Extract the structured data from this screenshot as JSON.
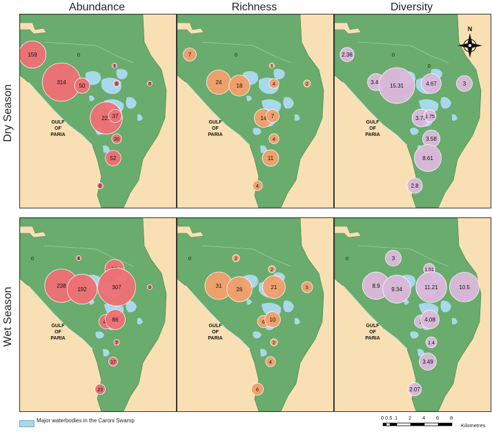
{
  "columns": [
    "Abundance",
    "Richness",
    "Diversity"
  ],
  "rows": [
    "Dry Season",
    "Wet Season"
  ],
  "gulf_label": [
    "GULF",
    "OF",
    "PARIA"
  ],
  "north_label": "N",
  "legend": {
    "waterbodies_label": "Major waterbodies in the Caroni Swamp",
    "waterbodies_color": "#a8d8ea"
  },
  "scale_bar": {
    "ticks": [
      "0",
      "0.5",
      "1",
      "2",
      "4",
      "6",
      "8"
    ],
    "unit": "Kilometres"
  },
  "colors": {
    "land": "#6aab6e",
    "sea": "#f9e0b4",
    "water": "#a8d8ea",
    "abundance": "#ef7075",
    "richness": "#f4a06c",
    "diversity": "#dcb9dc"
  },
  "chart_data": {
    "type": "proportional-symbol-map",
    "panels": [
      {
        "metric": "Abundance",
        "season": "Dry Season",
        "values": [
          "159",
          "0",
          "1",
          "314",
          "50",
          "8",
          "3",
          "221",
          "37",
          "20",
          "52",
          "8"
        ]
      },
      {
        "metric": "Richness",
        "season": "Dry Season",
        "values": [
          "7",
          "0",
          "1",
          "24",
          "18",
          "4",
          "2",
          "14",
          "7",
          "4",
          "11",
          "4"
        ]
      },
      {
        "metric": "Diversity",
        "season": "Dry Season",
        "values": [
          "2.36",
          "0",
          "0",
          "3.44",
          "15.31",
          "4.67",
          "3",
          "3.78",
          "1.75",
          "3.58",
          "8.61",
          "2.8"
        ]
      },
      {
        "metric": "Abundance",
        "season": "Wet Season",
        "values": [
          "0",
          "4",
          "80",
          "238",
          "192",
          "307",
          "3",
          "46",
          "86",
          "7",
          "17",
          "23"
        ]
      },
      {
        "metric": "Richness",
        "season": "Wet Season",
        "values": [
          "0",
          "2",
          "2",
          "31",
          "26",
          "21",
          "5",
          "6",
          "10",
          "2",
          "4",
          "6"
        ]
      },
      {
        "metric": "Diversity",
        "season": "Wet Season",
        "values": [
          "0",
          "3",
          "1.51",
          "8.9",
          "9.34",
          "11.21",
          "10.5",
          "2",
          "4.08",
          "1.4",
          "3.49",
          "2.07"
        ]
      }
    ]
  }
}
